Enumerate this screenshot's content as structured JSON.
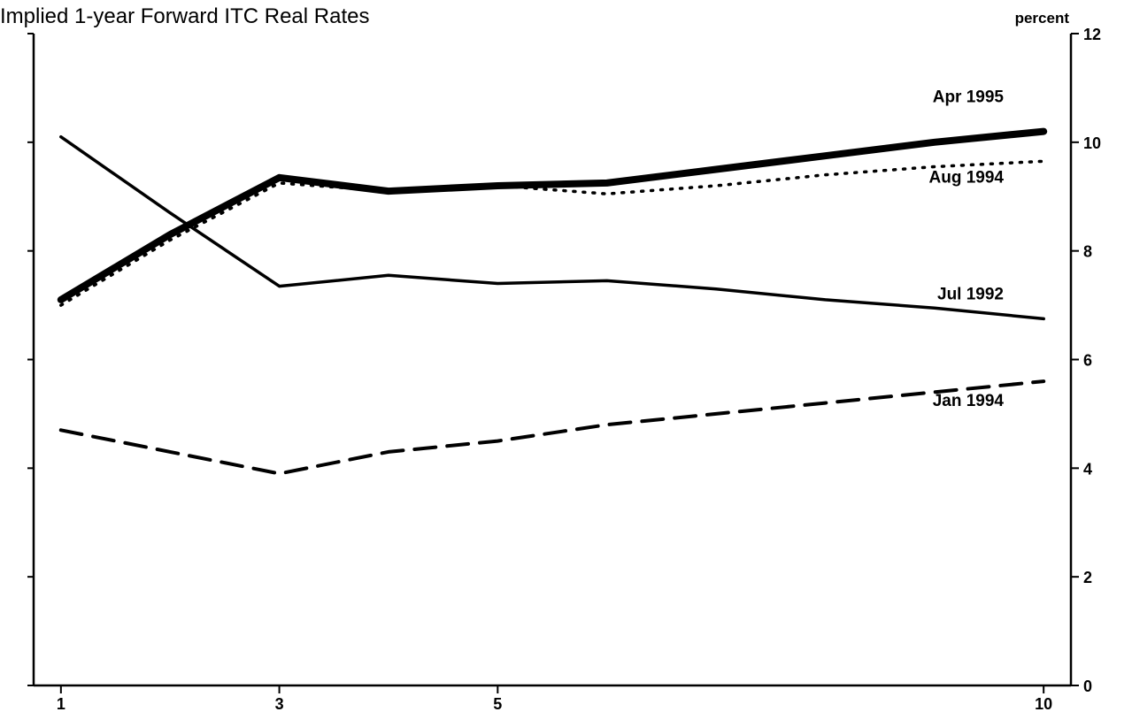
{
  "chart_data": {
    "type": "line",
    "title": "Implied 1-year Forward ITC Real Rates",
    "ylabel": "percent",
    "xlabel": "",
    "x_ticks": [
      1,
      3,
      5,
      10
    ],
    "y_ticks": [
      0,
      2,
      4,
      6,
      8,
      10,
      12
    ],
    "xlim": [
      0.75,
      10.25
    ],
    "ylim": [
      0,
      12
    ],
    "y_axis_side": "right",
    "grid": false,
    "series": [
      {
        "name": "Apr 1995",
        "style": "thick-solid",
        "x": [
          1,
          2,
          3,
          4,
          5,
          6,
          7,
          8,
          9,
          10
        ],
        "y": [
          7.1,
          8.3,
          9.35,
          9.1,
          9.2,
          9.25,
          9.5,
          9.75,
          10.0,
          10.2
        ]
      },
      {
        "name": "Aug 1994",
        "style": "dotted",
        "x": [
          1,
          2,
          3,
          4,
          5,
          6,
          7,
          8,
          9,
          10
        ],
        "y": [
          7.0,
          8.2,
          9.25,
          9.1,
          9.2,
          9.05,
          9.2,
          9.4,
          9.55,
          9.65
        ]
      },
      {
        "name": "Jul 1992",
        "style": "solid",
        "x": [
          1,
          2,
          3,
          4,
          5,
          6,
          7,
          8,
          9,
          10
        ],
        "y": [
          10.1,
          8.7,
          7.35,
          7.55,
          7.4,
          7.45,
          7.3,
          7.1,
          6.95,
          6.75
        ]
      },
      {
        "name": "Jan 1994",
        "style": "dashed",
        "x": [
          1,
          2,
          3,
          4,
          5,
          6,
          7,
          8,
          9,
          10
        ],
        "y": [
          4.7,
          4.3,
          3.9,
          4.3,
          4.5,
          4.8,
          5.0,
          5.2,
          5.4,
          5.6
        ]
      }
    ]
  }
}
